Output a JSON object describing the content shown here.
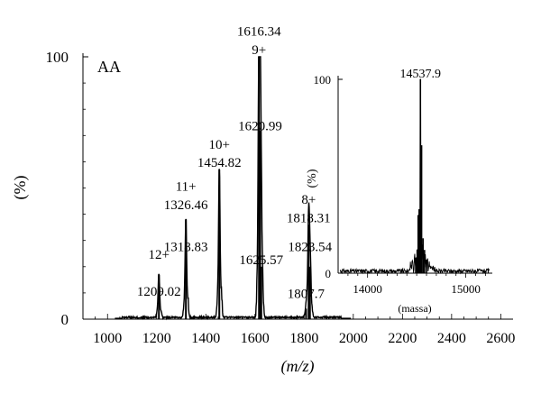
{
  "chart_data": [
    {
      "type": "line",
      "title": "AA",
      "xlabel": "(m/z)",
      "ylabel": "(%)",
      "xlim": [
        900,
        2650
      ],
      "ylim": [
        0,
        100
      ],
      "x_ticks": [
        1000,
        1200,
        1400,
        1600,
        1800,
        2000,
        2200,
        2400,
        2600
      ],
      "x_tick_labels": [
        "1000",
        "1200",
        "1400",
        "1600",
        "1800",
        "2000",
        "2200",
        "2400",
        "2600"
      ],
      "y_ticks": [
        0,
        100
      ],
      "y_tick_labels": [
        "0",
        "100"
      ],
      "peaks": [
        {
          "mz": 1209.02,
          "intensity": 17
        },
        {
          "mz": 1318.83,
          "intensity": 38
        },
        {
          "mz": 1454.82,
          "intensity": 57
        },
        {
          "mz": 1616.34,
          "intensity": 100
        },
        {
          "mz": 1620.99,
          "intensity": 72
        },
        {
          "mz": 1625.57,
          "intensity": 20
        },
        {
          "mz": 1807.7,
          "intensity": 4
        },
        {
          "mz": 1818.31,
          "intensity": 36
        },
        {
          "mz": 1823.54,
          "intensity": 20
        }
      ],
      "annotations": [
        {
          "text": "12+",
          "x": 1209.02,
          "y": 23
        },
        {
          "text": "1209.02",
          "x": 1209.02,
          "y": 9
        },
        {
          "text": "1318.83",
          "x": 1318.83,
          "y": 26
        },
        {
          "text": "11+",
          "x": 1318.83,
          "y": 49
        },
        {
          "text": "1326.46",
          "x": 1318.83,
          "y": 42
        },
        {
          "text": "10+",
          "x": 1454.82,
          "y": 65
        },
        {
          "text": "1454.82",
          "x": 1454.82,
          "y": 58
        },
        {
          "text": "1616.34",
          "x": 1616.34,
          "y": 108
        },
        {
          "text": "9+",
          "x": 1616.34,
          "y": 101
        },
        {
          "text": "1620.99",
          "x": 1620.99,
          "y": 72
        },
        {
          "text": "1625.57",
          "x": 1625.57,
          "y": 21
        },
        {
          "text": "1807.7",
          "x": 1807.7,
          "y": 8
        },
        {
          "text": "8+",
          "x": 1818.31,
          "y": 44
        },
        {
          "text": "1818.31",
          "x": 1818.31,
          "y": 37
        },
        {
          "text": "1823.54",
          "x": 1823.54,
          "y": 26
        }
      ]
    },
    {
      "type": "line",
      "title": "",
      "xlabel": "(massa)",
      "ylabel": "(%)",
      "xlim": [
        13700,
        15270
      ],
      "ylim": [
        0,
        100
      ],
      "x_ticks": [
        14000,
        15000
      ],
      "x_tick_labels": [
        "14000",
        "15000"
      ],
      "y_ticks": [
        0,
        100
      ],
      "y_tick_labels": [
        "0",
        "100"
      ],
      "peaks": [
        {
          "mass": 14537.9,
          "intensity": 100
        }
      ],
      "annotations": [
        {
          "text": "14537.9",
          "x": 14537.9,
          "y": 101
        }
      ]
    }
  ]
}
